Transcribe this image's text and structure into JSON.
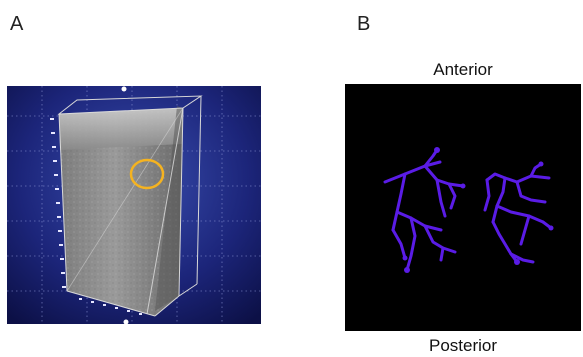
{
  "panels": {
    "a": {
      "label": "A",
      "description_icon": "oct-volume-render",
      "highlight_color": "#f5b320"
    },
    "b": {
      "label": "B",
      "top_caption": "Anterior",
      "bottom_caption": "Posterior",
      "vessel_color": "#5a1ce6"
    }
  }
}
